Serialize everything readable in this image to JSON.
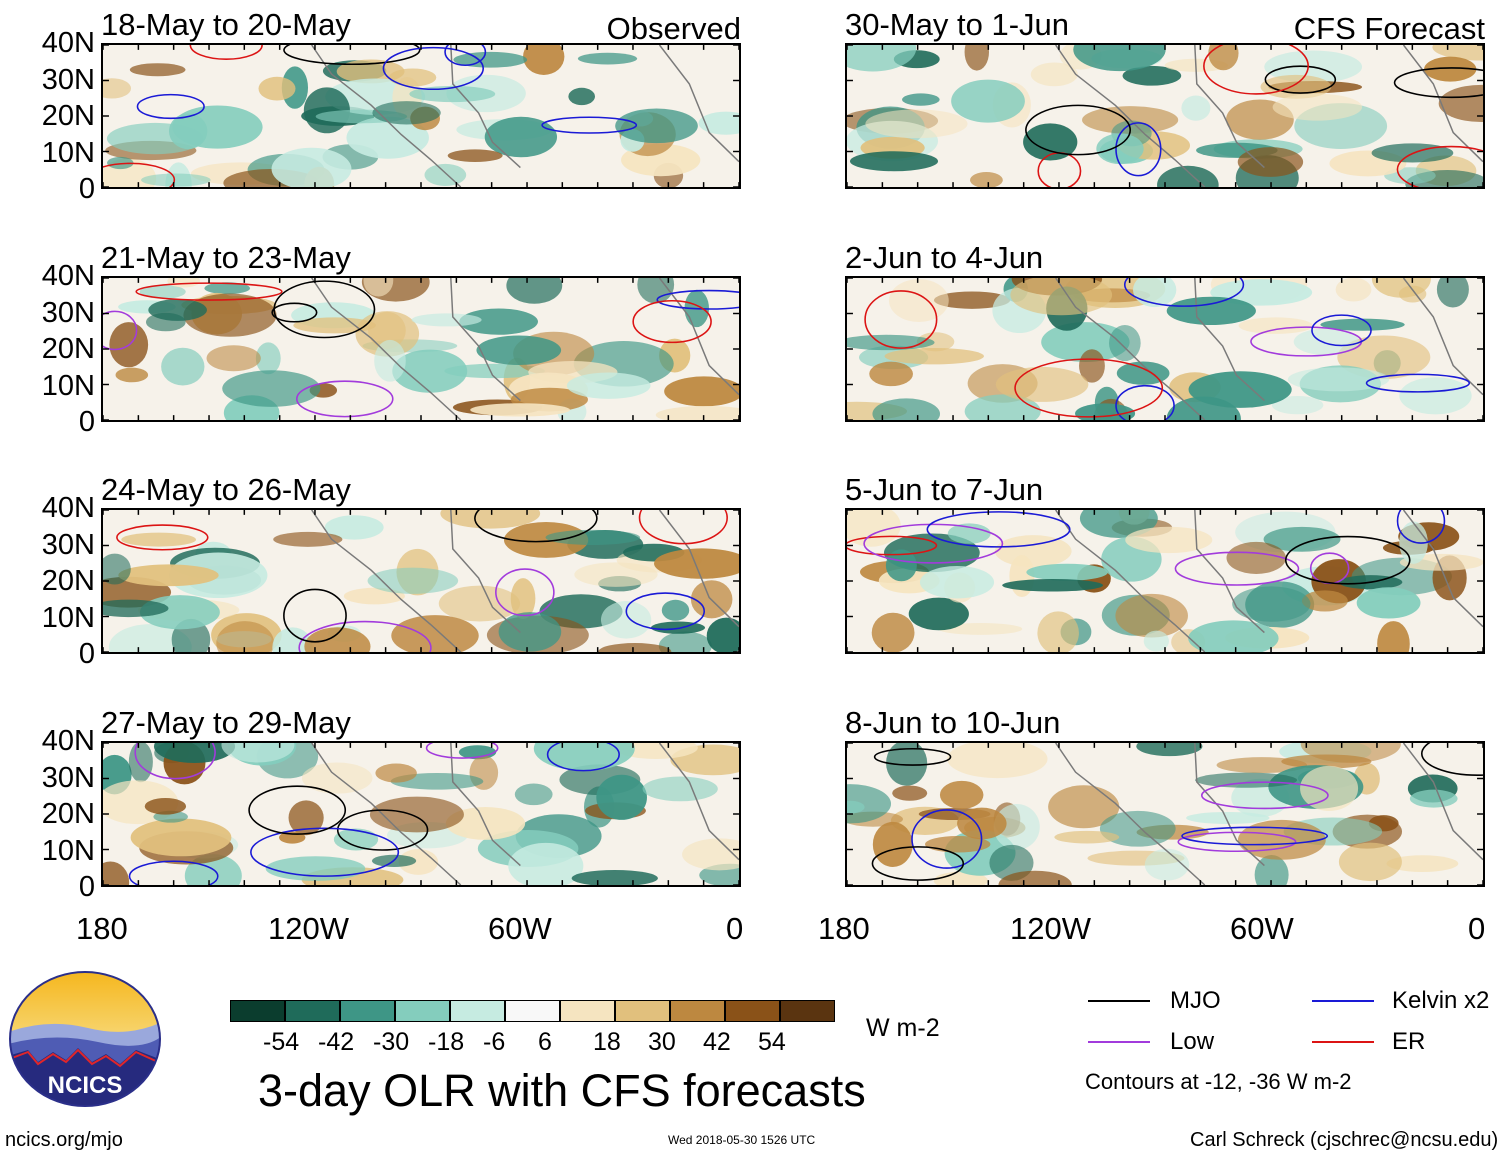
{
  "chart_data": {
    "type": "heatmap",
    "title": "3-day OLR with CFS forecasts",
    "variable": "OLR anomaly",
    "units": "W m-2",
    "columns": {
      "left": "Observed",
      "right": "CFS Forecast"
    },
    "panels": [
      {
        "id": "p1",
        "period": "18-May to 20-May",
        "column": "left",
        "tag": "Observed"
      },
      {
        "id": "p2",
        "period": "21-May to 23-May",
        "column": "left"
      },
      {
        "id": "p3",
        "period": "24-May to 26-May",
        "column": "left"
      },
      {
        "id": "p4",
        "period": "27-May to 29-May",
        "column": "left"
      },
      {
        "id": "p5",
        "period": "30-May to 1-Jun",
        "column": "right",
        "tag": "CFS Forecast"
      },
      {
        "id": "p6",
        "period": "2-Jun to 4-Jun",
        "column": "right"
      },
      {
        "id": "p7",
        "period": "5-Jun to 7-Jun",
        "column": "right"
      },
      {
        "id": "p8",
        "period": "8-Jun to 10-Jun",
        "column": "right"
      }
    ],
    "lat_ticks": [
      "40N",
      "30N",
      "20N",
      "10N",
      "0"
    ],
    "lon_ticks": [
      "180",
      "120W",
      "60W",
      "0"
    ],
    "lat_range": [
      0,
      40
    ],
    "lon_range": [
      -180,
      0
    ],
    "colorbar": {
      "labels": [
        "-54",
        "-42",
        "-30",
        "-18",
        "-6",
        "6",
        "18",
        "30",
        "42",
        "54"
      ],
      "colors": [
        "#0b3d2e",
        "#1f6b5a",
        "#3e9686",
        "#84cdbd",
        "#c6ebe1",
        "#f8f8f8",
        "#f5e4c0",
        "#e1c07d",
        "#bd8840",
        "#8a5218",
        "#5a3410"
      ]
    },
    "legend": [
      {
        "label": "MJO",
        "color": "#000000"
      },
      {
        "label": "Kelvin x2",
        "color": "#1a1ad6"
      },
      {
        "label": "Low",
        "color": "#a23bdc"
      },
      {
        "label": "ER",
        "color": "#dc1414"
      }
    ],
    "contour_note": "Contours at -12, -36 W m-2"
  },
  "footer": {
    "url": "ncics.org/mjo",
    "timestamp": "Wed 2018-05-30 1526 UTC",
    "credit": "Carl Schreck (cjschrec@ncsu.edu)"
  },
  "logo": {
    "text": "NCICS"
  }
}
